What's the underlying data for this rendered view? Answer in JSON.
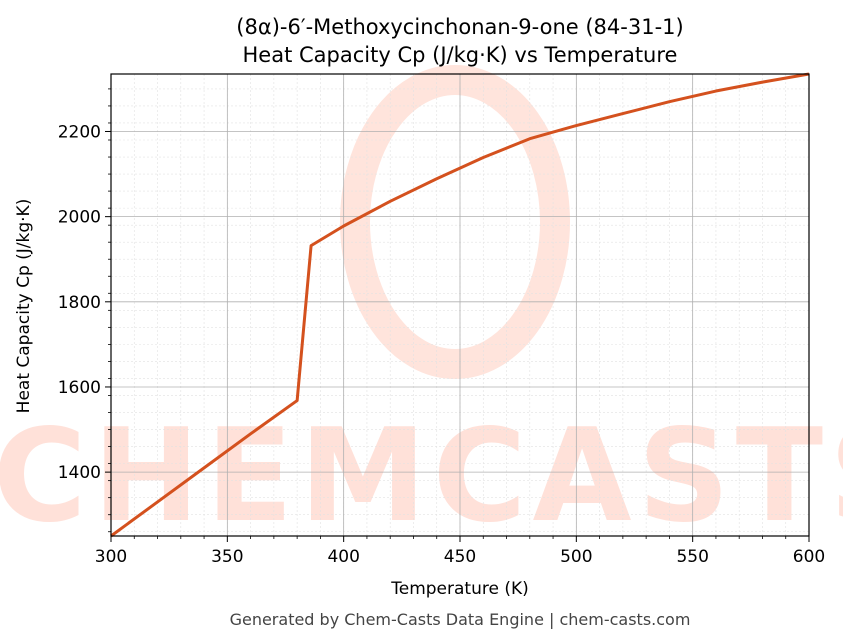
{
  "chart_data": {
    "type": "line",
    "title": "(8α)-6′-Methoxycinchonan-9-one (84-31-1)",
    "subtitle": "Heat Capacity Cp (J/kg·K) vs Temperature",
    "xlabel": "Temperature (K)",
    "ylabel": "Heat Capacity Cp (J/kg·K)",
    "xlim": [
      300,
      600
    ],
    "ylim": [
      1250,
      2335
    ],
    "x_ticks": [
      300,
      350,
      400,
      450,
      500,
      550,
      600
    ],
    "y_ticks": [
      1400,
      1600,
      1800,
      2000,
      2200
    ],
    "grid": true,
    "series": [
      {
        "color": "#d4511e",
        "points": [
          [
            300,
            1250
          ],
          [
            320,
            1330
          ],
          [
            340,
            1410
          ],
          [
            360,
            1490
          ],
          [
            380,
            1568
          ],
          [
            386,
            1932
          ],
          [
            400,
            1978
          ],
          [
            420,
            2036
          ],
          [
            440,
            2089
          ],
          [
            460,
            2139
          ],
          [
            480,
            2183
          ],
          [
            500,
            2214
          ],
          [
            520,
            2242
          ],
          [
            540,
            2270
          ],
          [
            560,
            2295
          ],
          [
            580,
            2316
          ],
          [
            600,
            2335
          ]
        ]
      }
    ]
  },
  "footer": "Generated by Chem-Casts Data Engine | chem-casts.com",
  "watermark": "CHEMCASTS",
  "colors": {
    "line": "#d4511e",
    "watermark": "#ffe1d9"
  }
}
